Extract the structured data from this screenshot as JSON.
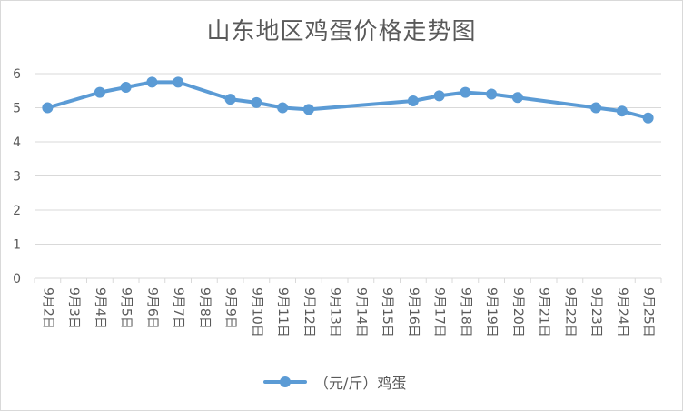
{
  "chart_data": {
    "type": "line",
    "title": "山东地区鸡蛋价格走势图",
    "categories": [
      "9月2日",
      "9月3日",
      "9月4日",
      "9月5日",
      "9月6日",
      "9月7日",
      "9月8日",
      "9月9日",
      "9月10日",
      "9月11日",
      "9月12日",
      "9月13日",
      "9月14日",
      "9月15日",
      "9月16日",
      "9月17日",
      "9月18日",
      "9月19日",
      "9月20日",
      "9月21日",
      "9月22日",
      "9月23日",
      "9月24日",
      "9月25日"
    ],
    "series": [
      {
        "name": "（元/斤）鸡蛋",
        "color": "#5b9bd5",
        "values": [
          5.0,
          null,
          5.45,
          5.6,
          5.75,
          5.75,
          null,
          5.25,
          5.15,
          5.0,
          4.95,
          null,
          null,
          null,
          5.2,
          5.35,
          5.45,
          5.4,
          5.3,
          null,
          null,
          5.0,
          4.9,
          4.7
        ]
      }
    ],
    "ylim": [
      0,
      6
    ],
    "yticks": [
      "0",
      "1",
      "2",
      "3",
      "4",
      "5",
      "6"
    ],
    "grid": true,
    "legend_position": "bottom"
  }
}
